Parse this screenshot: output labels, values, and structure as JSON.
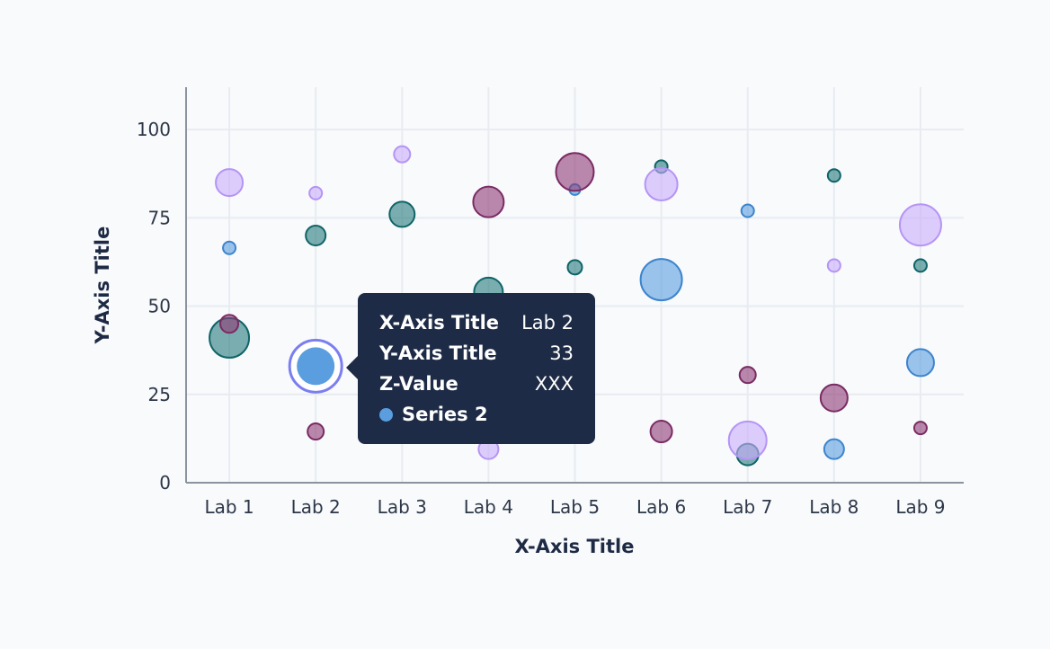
{
  "colors": {
    "series1": {
      "fill": "#267a7c",
      "stroke": "#0f6467"
    },
    "series2": {
      "fill": "#5a9ee0",
      "stroke": "#3d84cc"
    },
    "series3": {
      "fill": "#c9aefc",
      "stroke": "#b594f5"
    },
    "series4": {
      "fill": "#8d3a74",
      "stroke": "#7a2b63"
    },
    "highlight_ring": "#7b7ef0",
    "tooltip_bg": "#1d2b46"
  },
  "chart_data": {
    "type": "scatter",
    "subtype": "bubble",
    "title": "",
    "xlabel": "X-Axis Title",
    "ylabel": "Y-Axis Title",
    "categories": [
      "Lab 1",
      "Lab 2",
      "Lab 3",
      "Lab 4",
      "Lab 5",
      "Lab 6",
      "Lab 7",
      "Lab 8",
      "Lab 9"
    ],
    "ylim": [
      0,
      112
    ],
    "yticks": [
      0,
      25,
      50,
      75,
      100
    ],
    "grid": true,
    "series": [
      {
        "key": "series1",
        "points": [
          {
            "x": "Lab 1",
            "y": 41,
            "z": 22
          },
          {
            "x": "Lab 2",
            "y": 70,
            "z": 11
          },
          {
            "x": "Lab 3",
            "y": 76,
            "z": 14
          },
          {
            "x": "Lab 4",
            "y": 54,
            "z": 16
          },
          {
            "x": "Lab 5",
            "y": 61,
            "z": 8
          },
          {
            "x": "Lab 6",
            "y": 89.5,
            "z": 7
          },
          {
            "x": "Lab 7",
            "y": 8,
            "z": 12
          },
          {
            "x": "Lab 8",
            "y": 87,
            "z": 7
          },
          {
            "x": "Lab 9",
            "y": 61.5,
            "z": 7
          }
        ]
      },
      {
        "key": "series2",
        "points": [
          {
            "x": "Lab 1",
            "y": 66.5,
            "z": 7
          },
          {
            "x": "Lab 2",
            "y": 33,
            "z": 26
          },
          {
            "x": "Lab 5",
            "y": 83,
            "z": 6
          },
          {
            "x": "Lab 6",
            "y": 57.5,
            "z": 23
          },
          {
            "x": "Lab 7",
            "y": 77,
            "z": 7
          },
          {
            "x": "Lab 8",
            "y": 9.5,
            "z": 11
          },
          {
            "x": "Lab 9",
            "y": 34,
            "z": 15
          }
        ]
      },
      {
        "key": "series3",
        "points": [
          {
            "x": "Lab 1",
            "y": 85,
            "z": 15
          },
          {
            "x": "Lab 2",
            "y": 82,
            "z": 7
          },
          {
            "x": "Lab 3",
            "y": 93,
            "z": 9
          },
          {
            "x": "Lab 4",
            "y": 9.5,
            "z": 11
          },
          {
            "x": "Lab 6",
            "y": 84.5,
            "z": 18
          },
          {
            "x": "Lab 7",
            "y": 12,
            "z": 21
          },
          {
            "x": "Lab 8",
            "y": 61.5,
            "z": 7
          },
          {
            "x": "Lab 9",
            "y": 73,
            "z": 23
          }
        ]
      },
      {
        "key": "series4",
        "points": [
          {
            "x": "Lab 1",
            "y": 45,
            "z": 10
          },
          {
            "x": "Lab 2",
            "y": 14.5,
            "z": 9
          },
          {
            "x": "Lab 4",
            "y": 79.5,
            "z": 17
          },
          {
            "x": "Lab 5",
            "y": 88,
            "z": 21
          },
          {
            "x": "Lab 6",
            "y": 14.5,
            "z": 12
          },
          {
            "x": "Lab 7",
            "y": 30.5,
            "z": 9
          },
          {
            "x": "Lab 8",
            "y": 24,
            "z": 15
          },
          {
            "x": "Lab 9",
            "y": 15.5,
            "z": 7
          }
        ]
      }
    ]
  },
  "highlight": {
    "series": "series2",
    "x": "Lab 2",
    "y": 33
  },
  "tooltip": {
    "rows": [
      {
        "key": "X-Axis Title",
        "value": "Lab 2"
      },
      {
        "key": "Y-Axis Title",
        "value": "33"
      },
      {
        "key": "Z-Value",
        "value": "XXX"
      }
    ],
    "series_label": "Series 2"
  }
}
